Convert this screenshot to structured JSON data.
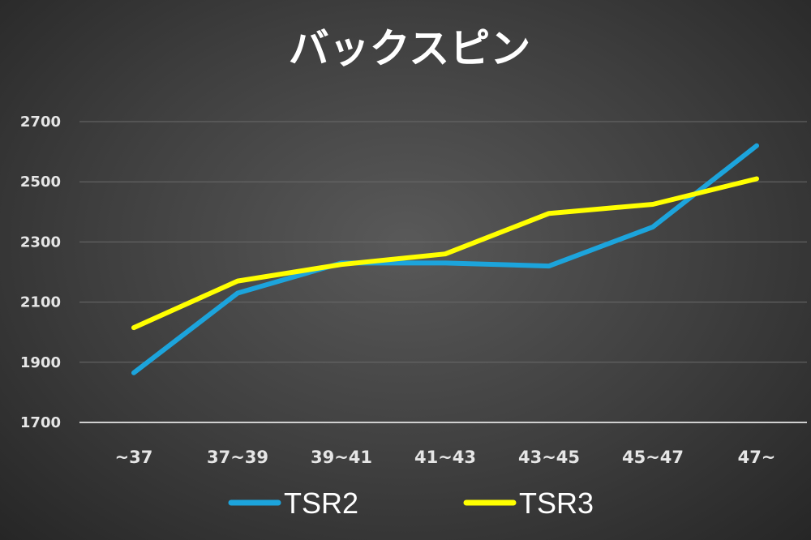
{
  "chart_data": {
    "type": "line",
    "title": "バックスピン",
    "categories": [
      "~37",
      "37~39",
      "39~41",
      "41~43",
      "43~45",
      "45~47",
      "47~"
    ],
    "ylim": [
      1700,
      2700
    ],
    "yticks": [
      1700,
      1900,
      2100,
      2300,
      2500,
      2700
    ],
    "grid": true,
    "legend": "bottom",
    "series": [
      {
        "name": "TSR2",
        "color": "#1ca4dc",
        "values": [
          1865,
          2130,
          2230,
          2230,
          2220,
          2350,
          2620
        ]
      },
      {
        "name": "TSR3",
        "color": "#ffff00",
        "values": [
          2015,
          2170,
          2225,
          2260,
          2395,
          2425,
          2510
        ]
      }
    ]
  }
}
